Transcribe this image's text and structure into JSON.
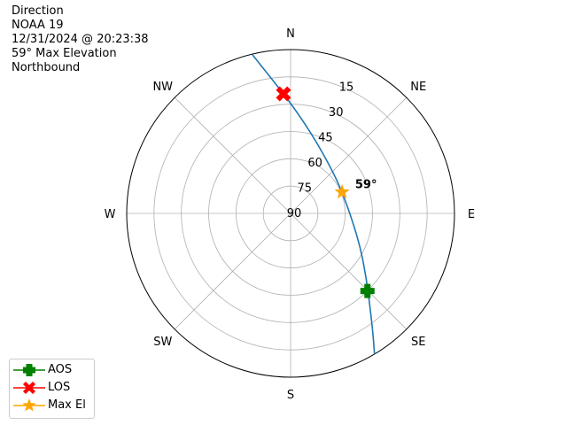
{
  "header": {
    "lines": [
      "Direction",
      "NOAA 19",
      "12/31/2024 @ 20:23:38",
      "59° Max Elevation",
      "Northbound"
    ]
  },
  "chart_data": {
    "type": "polar-line",
    "theta_zero": "N",
    "theta_direction": "clockwise",
    "direction_labels": [
      "N",
      "NE",
      "E",
      "SE",
      "S",
      "SW",
      "W",
      "NW"
    ],
    "radial_tick_labels": [
      "15",
      "30",
      "45",
      "60",
      "75",
      "90"
    ],
    "radial_axis": "elevation (90 at center, 0 at edge)",
    "grid": true,
    "track": {
      "color": "#1f77b4",
      "azimuth": [
        346.5,
        359.4,
        19.5,
        60.6,
        109.1,
        130.3,
        143.9,
        149.2
      ],
      "elevation": [
        0.4,
        28.7,
        48.2,
        59.3,
        51.4,
        35.8,
        14.1,
        0
      ]
    },
    "markers": [
      {
        "name": "AOS",
        "azimuth": 135.3,
        "elevation": 30,
        "color": "#008000",
        "shape": "plus"
      },
      {
        "name": "LOS",
        "azimuth": 356.6,
        "elevation": 24.2,
        "color": "#ff0000",
        "shape": "x"
      },
      {
        "name": "Max El",
        "azimuth": 67.5,
        "elevation": 59.4,
        "color": "#ffa500",
        "shape": "star"
      }
    ],
    "annotation": {
      "text": "59°",
      "azimuth": 67.5,
      "elevation": 59
    },
    "legend_placement": "lower-left"
  }
}
